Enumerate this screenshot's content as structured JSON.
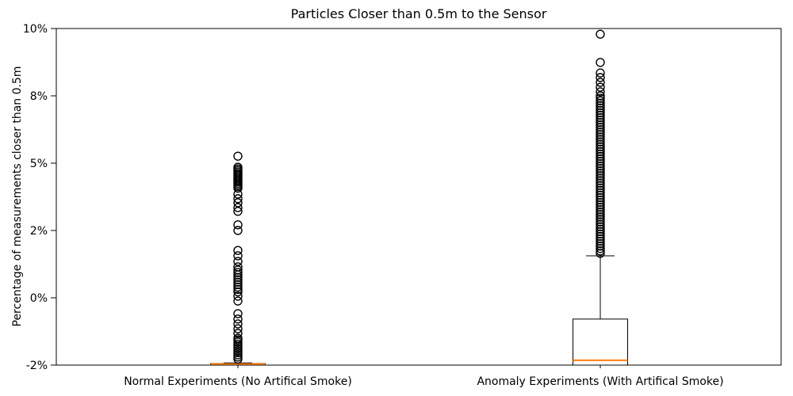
{
  "chart_data": {
    "type": "boxplot",
    "title": "Particles Closer than 0.5m to the Sensor",
    "ylabel": "Percentage of measurements closer than 0.5m",
    "xlabel": "",
    "ylim": [
      -2.5,
      10
    ],
    "grid": false,
    "legend": "none",
    "y_ticks": {
      "values": [
        10,
        7.5,
        5,
        2.5,
        0,
        -2.5
      ],
      "labels": [
        "10%",
        "8%",
        "5%",
        "2%",
        "0%",
        "-2%"
      ]
    },
    "categories": [
      "Normal Experiments (No Artifical Smoke)",
      "Anomaly Experiments (With Artifical Smoke)"
    ],
    "colors": {
      "box_line": "#000000",
      "median": "#ff7f0e",
      "outlier": "#000000",
      "background": "#ffffff"
    },
    "series": [
      {
        "name": "normal",
        "median": -2.46,
        "q1": -2.75,
        "q3": -2.44,
        "whisker_low": -2.8,
        "whisker_high": -2.42,
        "outliers": [
          5.26,
          3.85,
          3.68,
          3.53,
          3.35,
          3.21,
          2.71,
          2.5,
          1.76,
          1.56,
          1.35,
          1.15,
          0.06,
          -0.12,
          -0.59,
          -0.79,
          -0.97,
          -1.15,
          -1.32,
          -1.5
        ],
        "outlier_runs": [
          [
            4.85,
            4.03,
            0.06
          ],
          [
            1.03,
            0.15,
            0.09
          ],
          [
            -1.56,
            -2.35,
            0.08
          ]
        ]
      },
      {
        "name": "anomaly",
        "median": -2.32,
        "q1": -2.75,
        "q3": -0.79,
        "whisker_low": -2.9,
        "whisker_high": 1.56,
        "outliers": [
          9.79,
          8.74,
          8.35,
          8.18,
          8.0,
          7.82,
          7.65
        ],
        "outlier_runs": [
          [
            7.5,
            1.59,
            0.09
          ]
        ]
      }
    ]
  }
}
